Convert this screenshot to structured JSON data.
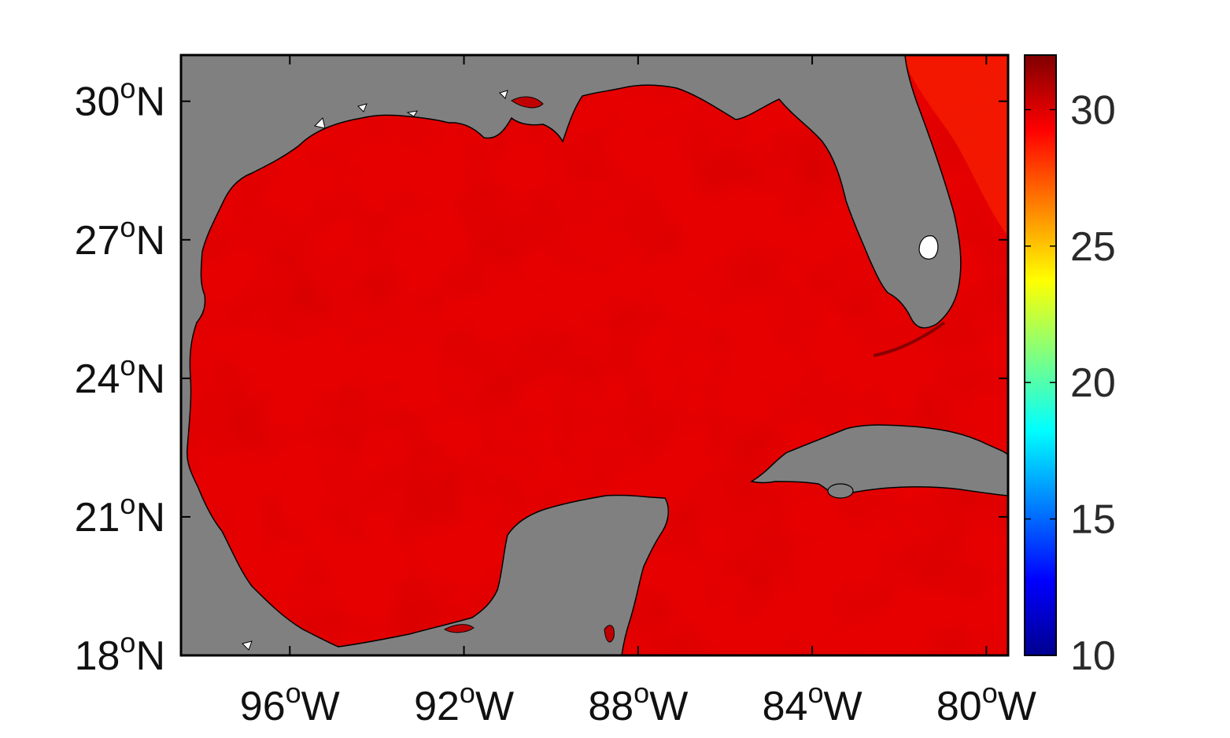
{
  "map": {
    "region": "Gulf of Mexico",
    "colors": {
      "land": "#808080",
      "inland_water": "#ffffff",
      "ocean_mean": "#e60000",
      "ocean_dark": "#c80000",
      "ocean_bright": "#ff1a00",
      "coastline": "#000000"
    },
    "extent": {
      "lon_min": -98.5,
      "lon_max": -79.5,
      "lat_min": 18,
      "lat_max": 31
    }
  },
  "chart_data": {
    "type": "heatmap",
    "title": "",
    "value_range_displayed": [
      29,
      31.5
    ],
    "x_axis": {
      "ticks": [
        {
          "value": -96,
          "deg": "96",
          "sup": "o",
          "hem": "W"
        },
        {
          "value": -92,
          "deg": "92",
          "sup": "o",
          "hem": "W"
        },
        {
          "value": -88,
          "deg": "88",
          "sup": "o",
          "hem": "W"
        },
        {
          "value": -84,
          "deg": "84",
          "sup": "o",
          "hem": "W"
        },
        {
          "value": -80,
          "deg": "80",
          "sup": "o",
          "hem": "W"
        }
      ]
    },
    "y_axis": {
      "ticks": [
        {
          "value": 18,
          "deg": "18",
          "sup": "o",
          "hem": "N"
        },
        {
          "value": 21,
          "deg": "21",
          "sup": "o",
          "hem": "N"
        },
        {
          "value": 24,
          "deg": "24",
          "sup": "o",
          "hem": "N"
        },
        {
          "value": 27,
          "deg": "27",
          "sup": "o",
          "hem": "N"
        },
        {
          "value": 30,
          "deg": "30",
          "sup": "o",
          "hem": "N"
        }
      ]
    },
    "colorbar": {
      "range": [
        10,
        32
      ],
      "colormap": "jet",
      "ticks": [
        {
          "value": 10,
          "label": "10"
        },
        {
          "value": 15,
          "label": "15"
        },
        {
          "value": 20,
          "label": "20"
        },
        {
          "value": 25,
          "label": "25"
        },
        {
          "value": 30,
          "label": "30"
        }
      ]
    }
  }
}
